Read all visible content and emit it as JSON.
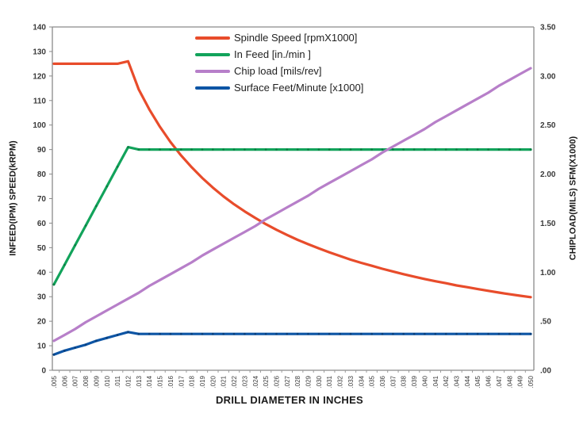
{
  "chart_data": {
    "type": "line",
    "xlabel": "DRILL DIAMETER IN INCHES",
    "x_labels": [
      ".005",
      ".006",
      ".007",
      ".008",
      ".009",
      ".010",
      ".011",
      ".012",
      ".013",
      ".014",
      ".015",
      ".016",
      ".017",
      ".018",
      ".019",
      ".020",
      ".021",
      ".022",
      ".023",
      ".024",
      ".025",
      ".026",
      ".027",
      ".028",
      ".029",
      ".030",
      ".031",
      ".032",
      ".033",
      ".034",
      ".035",
      ".036",
      ".037",
      ".038",
      ".039",
      ".040",
      ".041",
      ".042",
      ".043",
      ".044",
      ".045",
      ".046",
      ".047",
      ".048",
      ".049",
      ".050"
    ],
    "left_axis": {
      "label": "INFEED(IPM) SPEED(kRPM)",
      "min": 0,
      "max": 140,
      "tick_labels": [
        "0",
        "10",
        "20",
        "30",
        "40",
        "50",
        "60",
        "70",
        "80",
        "90",
        "100",
        "110",
        "120",
        "130",
        "140"
      ]
    },
    "right_axis": {
      "label": "CHIPLOAD(MILS) SFM(X1000)",
      "min": 0,
      "max": 3.5,
      "tick_labels": [
        ".00",
        ".50",
        "1.00",
        "1.50",
        "2.00",
        "2.50",
        "3.00",
        "3.50"
      ]
    },
    "legend_position": "top-inside",
    "grid": false,
    "series": [
      {
        "name": "Spindle Speed [rpmX1000]",
        "axis": "left",
        "color": "#e84c2b",
        "marker_color": null,
        "values": [
          125,
          125,
          125,
          125,
          125,
          125,
          125,
          126,
          114.6,
          106.4,
          99.3,
          93.1,
          87.6,
          82.8,
          78.4,
          74.5,
          70.9,
          67.7,
          64.8,
          62.1,
          59.6,
          57.3,
          55.2,
          53.2,
          51.4,
          49.7,
          48.1,
          46.6,
          45.1,
          43.8,
          42.6,
          41.4,
          40.3,
          39.2,
          38.2,
          37.2,
          36.3,
          35.5,
          34.6,
          33.9,
          33.1,
          32.4,
          31.7,
          31.0,
          30.4,
          29.8
        ]
      },
      {
        "name": "In Feed [in./min ]",
        "axis": "left",
        "color": "#12a35b",
        "marker_color": "#0b7e43",
        "values": [
          35,
          43,
          51,
          59,
          67,
          75,
          83,
          91,
          90,
          90,
          90,
          90,
          90,
          90,
          90,
          90,
          90,
          90,
          90,
          90,
          90,
          90,
          90,
          90,
          90,
          90,
          90,
          90,
          90,
          90,
          90,
          90,
          90,
          90,
          90,
          90,
          90,
          90,
          90,
          90,
          90,
          90,
          90,
          90,
          90,
          90
        ]
      },
      {
        "name": "Chip load [mils/rev]",
        "axis": "right",
        "color": "#b77fc9",
        "marker_color": null,
        "values": [
          0.3,
          0.36,
          0.42,
          0.49,
          0.55,
          0.61,
          0.67,
          0.73,
          0.79,
          0.86,
          0.92,
          0.98,
          1.04,
          1.1,
          1.17,
          1.23,
          1.29,
          1.35,
          1.41,
          1.47,
          1.54,
          1.6,
          1.66,
          1.72,
          1.78,
          1.85,
          1.91,
          1.97,
          2.03,
          2.09,
          2.15,
          2.22,
          2.28,
          2.34,
          2.4,
          2.46,
          2.53,
          2.59,
          2.65,
          2.71,
          2.77,
          2.83,
          2.9,
          2.96,
          3.02,
          3.08
        ]
      },
      {
        "name": "Surface Feet/Minute [x1000]",
        "axis": "right",
        "color": "#0d55a5",
        "marker_color": "#0a3f7a",
        "values": [
          0.16,
          0.2,
          0.23,
          0.26,
          0.3,
          0.33,
          0.36,
          0.39,
          0.37,
          0.37,
          0.37,
          0.37,
          0.37,
          0.37,
          0.37,
          0.37,
          0.37,
          0.37,
          0.37,
          0.37,
          0.37,
          0.37,
          0.37,
          0.37,
          0.37,
          0.37,
          0.37,
          0.37,
          0.37,
          0.37,
          0.37,
          0.37,
          0.37,
          0.37,
          0.37,
          0.37,
          0.37,
          0.37,
          0.37,
          0.37,
          0.37,
          0.37,
          0.37,
          0.37,
          0.37,
          0.37
        ]
      }
    ]
  }
}
